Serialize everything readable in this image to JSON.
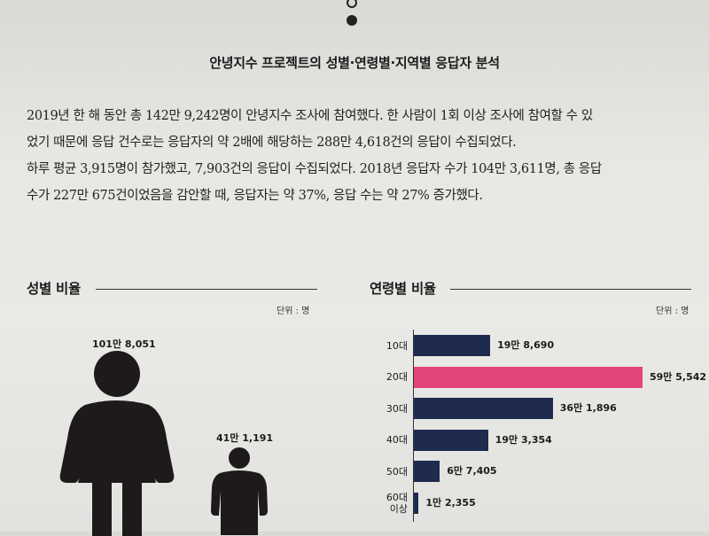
{
  "heading": "안녕지수 프로젝트의 성별·연령별·지역별 응답자 분석",
  "paragraph": {
    "line1": "2019년 한 해 동안 총 142만 9,242명이 안녕지수 조사에 참여했다. 한 사람이 1회 이상 조사에 참여할 수 있",
    "line2": "었기 때문에 응답 건수로는 응답자의 약 2배에 해당하는 288만 4,618건의 응답이 수집되었다.",
    "line3": "하루 평균 3,915명이 참가했고, 7,903건의 응답이 수집되었다. 2018년 응답자 수가 104만 3,611명, 총 응답",
    "line4": "수가 227만 675건이었음을 감안할 때, 응답자는 약 37%, 응답 수는 약 27% 증가했다."
  },
  "gender": {
    "title": "성별 비율",
    "unit": "단위 : 명",
    "female_value": "101만 8,051",
    "male_value": "41만 1,191",
    "female_count": 1018051,
    "male_count": 411191,
    "color": "#1e1a1c"
  },
  "age": {
    "title": "연령별 비율",
    "unit": "단위 : 명"
  },
  "chart_data": {
    "type": "bar",
    "orientation": "horizontal",
    "categories": [
      "10대",
      "20대",
      "30대",
      "40대",
      "50대",
      "60대 이상"
    ],
    "category_lines": [
      [
        "10대"
      ],
      [
        "20대"
      ],
      [
        "30대"
      ],
      [
        "40대"
      ],
      [
        "50대"
      ],
      [
        "60대",
        "이상"
      ]
    ],
    "values": [
      198690,
      595542,
      361896,
      193354,
      67405,
      12355
    ],
    "value_labels": [
      "19만 8,690",
      "59만 5,542",
      "36만 1,896",
      "19만 3,354",
      "6만 7,405",
      "1만 2,355"
    ],
    "highlight_index": 1,
    "colors": {
      "default": "#1f2a4f",
      "highlight": "#e2457a"
    },
    "xlim": [
      0,
      595542
    ]
  }
}
